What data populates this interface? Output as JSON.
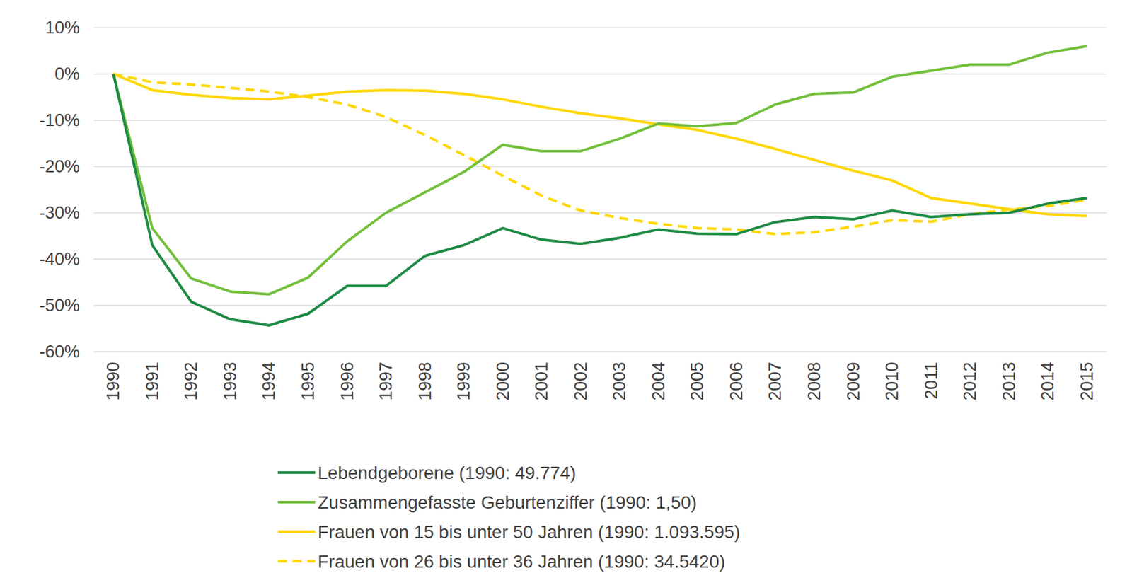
{
  "chart_data": {
    "type": "line",
    "categories": [
      "1990",
      "1991",
      "1992",
      "1993",
      "1994",
      "1995",
      "1996",
      "1997",
      "1998",
      "1999",
      "2000",
      "2001",
      "2002",
      "2003",
      "2004",
      "2005",
      "2006",
      "2007",
      "2008",
      "2009",
      "2010",
      "2011",
      "2012",
      "2013",
      "2014",
      "2015"
    ],
    "ylim": [
      -60,
      10
    ],
    "yticks": [
      {
        "value": 10,
        "label": "10%"
      },
      {
        "value": 0,
        "label": "0%"
      },
      {
        "value": -10,
        "label": "-10%"
      },
      {
        "value": -20,
        "label": "-20%"
      },
      {
        "value": -30,
        "label": "-30%"
      },
      {
        "value": -40,
        "label": "-40%"
      },
      {
        "value": -50,
        "label": "-50%"
      },
      {
        "value": -60,
        "label": "-60%"
      }
    ],
    "grid": true,
    "legend": "bottom",
    "series": [
      {
        "name": "Lebendgeborene (1990: 49.774)",
        "color": "#1e8a44",
        "line_style": "solid",
        "values": [
          0,
          -37,
          -49.2,
          -53,
          -54.3,
          -51.8,
          -45.8,
          -45.8,
          -39.3,
          -37,
          -33.3,
          -35.8,
          -36.7,
          -35.4,
          -33.6,
          -34.5,
          -34.6,
          -32,
          -30.9,
          -31.4,
          -29.5,
          -30.9,
          -30.3,
          -30,
          -28,
          -26.8
        ]
      },
      {
        "name": "Zusammengefasste Geburtenziffer (1990: 1,50)",
        "color": "#72bf3a",
        "line_style": "solid",
        "values": [
          0,
          -33.3,
          -44.2,
          -47,
          -47.6,
          -44,
          -36.2,
          -30,
          -25.6,
          -21.2,
          -15.3,
          -16.7,
          -16.7,
          -14,
          -10.7,
          -11.3,
          -10.6,
          -6.6,
          -4.3,
          -4,
          -0.6,
          0.7,
          2,
          2,
          4.6,
          6
        ]
      },
      {
        "name": "Frauen von 15 bis unter 50 Jahren (1990: 1.093.595)",
        "color": "#ffd700",
        "line_style": "solid",
        "values": [
          0,
          -3.5,
          -4.5,
          -5.2,
          -5.5,
          -4.7,
          -3.8,
          -3.5,
          -3.6,
          -4.3,
          -5.5,
          -7.1,
          -8.5,
          -9.6,
          -10.9,
          -12.1,
          -14,
          -16.2,
          -18.6,
          -20.9,
          -23,
          -26.8,
          -28,
          -29.2,
          -30.3,
          -30.7
        ]
      },
      {
        "name": "Frauen von 26 bis unter 36 Jahren (1990: 34.5420)",
        "color": "#ffd700",
        "line_style": "dashed",
        "values": [
          0,
          -1.8,
          -2.3,
          -3,
          -3.8,
          -5,
          -6.6,
          -9.3,
          -13.2,
          -17.5,
          -22,
          -26.3,
          -29.5,
          -31.1,
          -32.4,
          -33.3,
          -33.6,
          -34.6,
          -34.2,
          -33,
          -31.6,
          -31.9,
          -30.3,
          -29.3,
          -28.5,
          -27.2
        ]
      }
    ]
  }
}
